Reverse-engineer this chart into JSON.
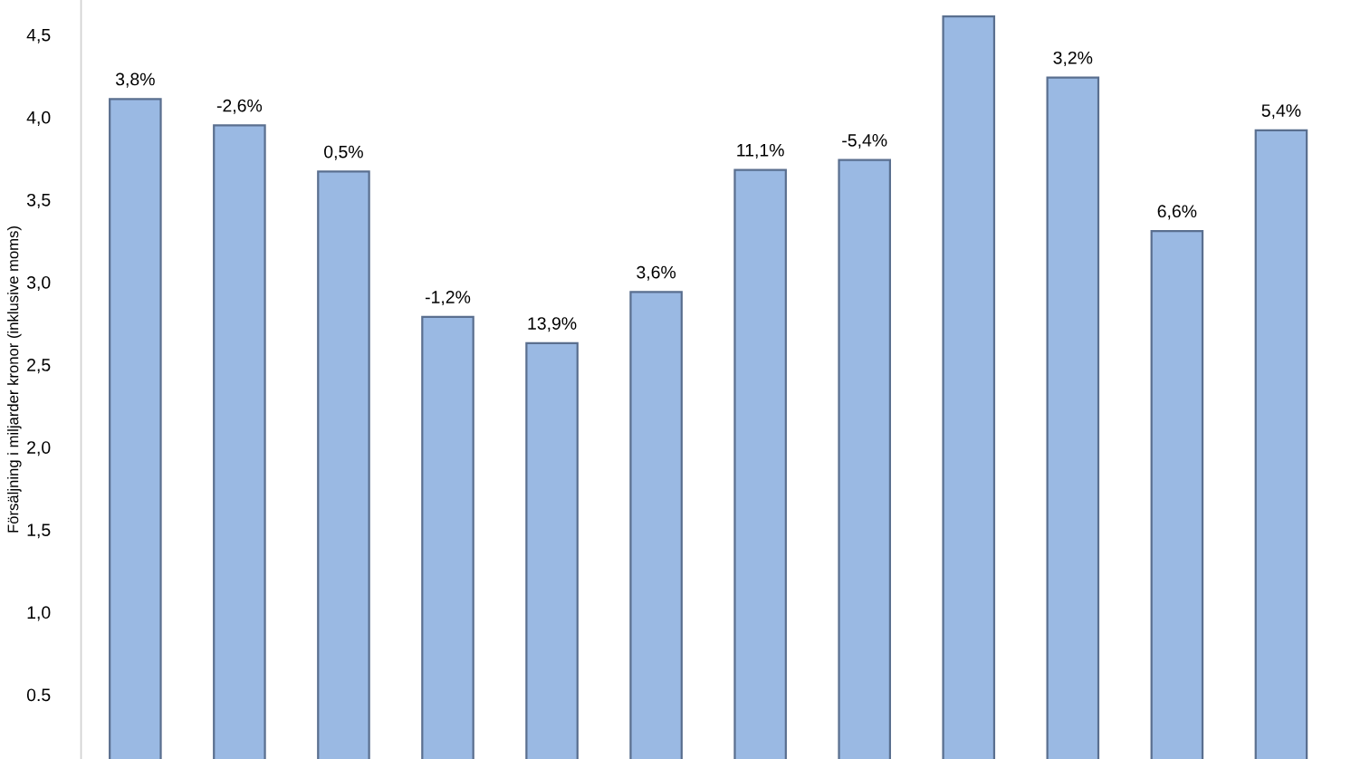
{
  "chart_data": {
    "type": "bar",
    "ylabel": "Försäljning i miljarder kronor (inklusive moms)",
    "categories": [
      null,
      null,
      null,
      null,
      null,
      null,
      null,
      null,
      null,
      null,
      null,
      null
    ],
    "values": [
      4.11,
      3.95,
      3.67,
      2.79,
      2.63,
      2.94,
      3.68,
      3.74,
      4.61,
      4.24,
      3.31,
      3.92
    ],
    "annotations": [
      "3,8%",
      "-2,6%",
      "0,5%",
      "-1,2%",
      "13,9%",
      "3,6%",
      "11,1%",
      "-5,4%",
      null,
      "3,2%",
      "6,6%",
      "5,4%"
    ],
    "color": "#9ab9e3",
    "ylim": [
      0.11,
      4.71
    ],
    "yticks": [
      {
        "value": 0.5,
        "label": "0.5"
      },
      {
        "value": 1.0,
        "label": "1,0"
      },
      {
        "value": 1.5,
        "label": "1,5"
      },
      {
        "value": 2.0,
        "label": "2,0"
      },
      {
        "value": 2.5,
        "label": "2,5"
      },
      {
        "value": 3.0,
        "label": "3,0"
      },
      {
        "value": 3.5,
        "label": "3,5"
      },
      {
        "value": 4.0,
        "label": "4,0"
      },
      {
        "value": 4.5,
        "label": "4,5"
      }
    ],
    "grid": false,
    "legend": false
  }
}
